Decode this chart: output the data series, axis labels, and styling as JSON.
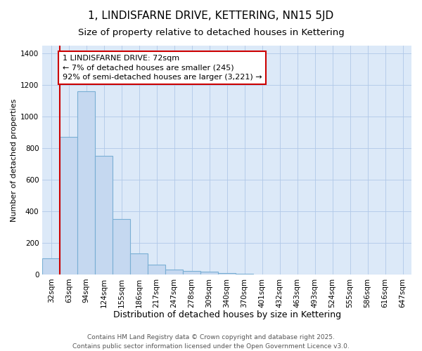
{
  "title": "1, LINDISFARNE DRIVE, KETTERING, NN15 5JD",
  "subtitle": "Size of property relative to detached houses in Kettering",
  "xlabel": "Distribution of detached houses by size in Kettering",
  "ylabel": "Number of detached properties",
  "categories": [
    "32sqm",
    "63sqm",
    "94sqm",
    "124sqm",
    "155sqm",
    "186sqm",
    "217sqm",
    "247sqm",
    "278sqm",
    "309sqm",
    "340sqm",
    "370sqm",
    "401sqm",
    "432sqm",
    "463sqm",
    "493sqm",
    "524sqm",
    "555sqm",
    "586sqm",
    "616sqm",
    "647sqm"
  ],
  "values": [
    100,
    870,
    1160,
    750,
    350,
    135,
    60,
    30,
    20,
    15,
    10,
    5,
    0,
    0,
    0,
    0,
    0,
    0,
    0,
    0,
    0
  ],
  "bar_color": "#c5d8f0",
  "bar_edge_color": "#7aafd4",
  "property_line_color": "#cc0000",
  "property_bin_index": 1,
  "annotation_text": "1 LINDISFARNE DRIVE: 72sqm\n← 7% of detached houses are smaller (245)\n92% of semi-detached houses are larger (3,221) →",
  "annotation_box_facecolor": "#ffffff",
  "annotation_box_edgecolor": "#cc0000",
  "ylim": [
    0,
    1450
  ],
  "plot_bg_color": "#dce9f8",
  "fig_bg_color": "#ffffff",
  "footer_line1": "Contains HM Land Registry data © Crown copyright and database right 2025.",
  "footer_line2": "Contains public sector information licensed under the Open Government Licence v3.0.",
  "title_fontsize": 11,
  "subtitle_fontsize": 9.5,
  "xlabel_fontsize": 9,
  "ylabel_fontsize": 8,
  "tick_fontsize": 7.5,
  "annotation_fontsize": 8,
  "footer_fontsize": 6.5
}
